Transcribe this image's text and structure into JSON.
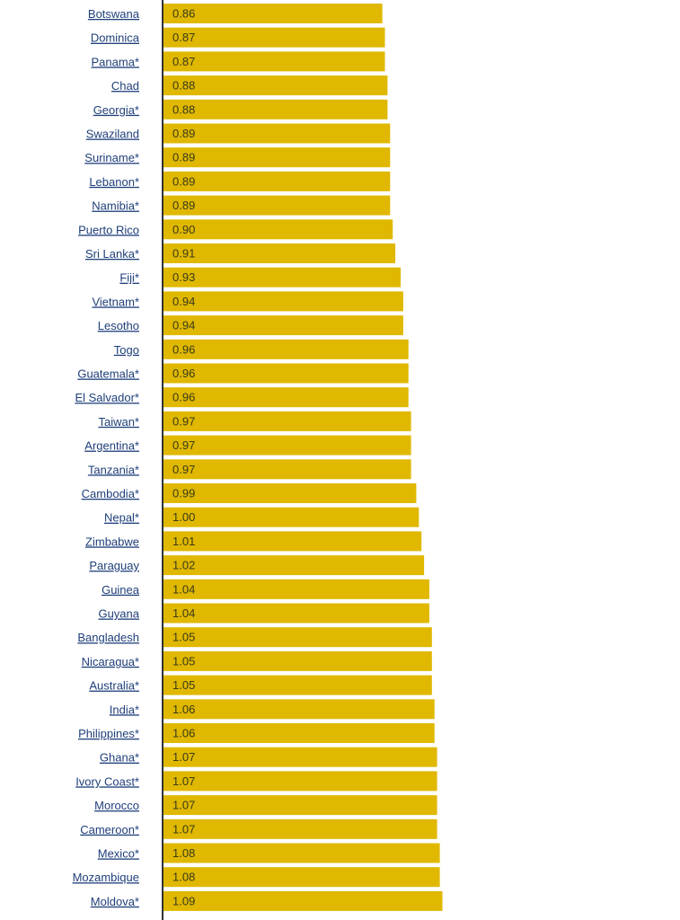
{
  "chart_data": {
    "type": "bar",
    "orientation": "horizontal",
    "bar_color": "#e0b800",
    "axis_color": "#333333",
    "label_color": "#1f3f7a",
    "value_text_color": "#3a3a1a",
    "categories": [
      "Botswana",
      "Dominica",
      "Panama*",
      "Chad",
      "Georgia*",
      "Swaziland",
      "Suriname*",
      "Lebanon*",
      "Namibia*",
      "Puerto Rico",
      "Sri Lanka*",
      "Fiji*",
      "Vietnam*",
      "Lesotho",
      "Togo",
      "Guatemala*",
      "El Salvador*",
      "Taiwan*",
      "Argentina*",
      "Tanzania*",
      "Cambodia*",
      "Nepal*",
      "Zimbabwe",
      "Paraguay",
      "Guinea",
      "Guyana",
      "Bangladesh",
      "Nicaragua*",
      "Australia*",
      "India*",
      "Philippines*",
      "Ghana*",
      "Ivory Coast*",
      "Morocco",
      "Cameroon*",
      "Mexico*",
      "Mozambique",
      "Moldova*"
    ],
    "values": [
      0.86,
      0.87,
      0.87,
      0.88,
      0.88,
      0.89,
      0.89,
      0.89,
      0.89,
      0.9,
      0.91,
      0.93,
      0.94,
      0.94,
      0.96,
      0.96,
      0.96,
      0.97,
      0.97,
      0.97,
      0.99,
      1.0,
      1.01,
      1.02,
      1.04,
      1.04,
      1.05,
      1.05,
      1.05,
      1.06,
      1.06,
      1.07,
      1.07,
      1.07,
      1.07,
      1.08,
      1.08,
      1.09
    ],
    "value_labels": [
      "0.86",
      "0.87",
      "0.87",
      "0.88",
      "0.88",
      "0.89",
      "0.89",
      "0.89",
      "0.89",
      "0.90",
      "0.91",
      "0.93",
      "0.94",
      "0.94",
      "0.96",
      "0.96",
      "0.96",
      "0.97",
      "0.97",
      "0.97",
      "0.99",
      "1.00",
      "1.01",
      "1.02",
      "1.04",
      "1.04",
      "1.05",
      "1.05",
      "1.05",
      "1.06",
      "1.06",
      "1.07",
      "1.07",
      "1.07",
      "1.07",
      "1.08",
      "1.08",
      "1.09"
    ],
    "grid": false,
    "legend": "none"
  }
}
